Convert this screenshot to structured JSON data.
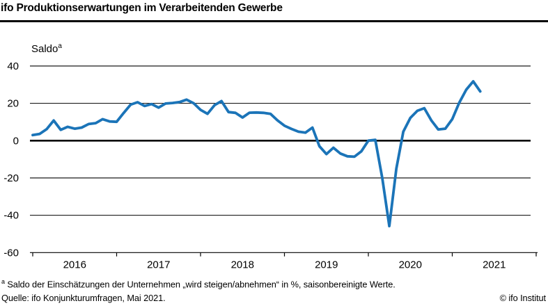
{
  "header": {
    "title": "ifo Produktionserwartungen im Verarbeitenden Gewerbe"
  },
  "y_axis": {
    "unit_label": "Saldo",
    "unit_label_marker": "a"
  },
  "chart_data": {
    "type": "line",
    "title": "ifo Produktionserwartungen im Verarbeitenden Gewerbe",
    "ylabel": "Saldo",
    "ylim": [
      -60,
      40
    ],
    "yticks": [
      40,
      20,
      0,
      -20,
      -40,
      -60
    ],
    "x_year_labels": [
      "2016",
      "2017",
      "2018",
      "2019",
      "2020",
      "2021"
    ],
    "x_start": "2016-01",
    "x_end": "2021-05",
    "frequency": "monthly",
    "grid": "horizontal",
    "zero_line_bold": true,
    "series": [
      {
        "name": "Produktionserwartungen (Saldo, saisonbereinigt)",
        "color": "#1b74b8",
        "values": [
          3.0,
          3.6,
          6.2,
          10.8,
          5.8,
          7.4,
          6.4,
          7.0,
          8.9,
          9.4,
          11.5,
          10.3,
          10.1,
          14.8,
          19.3,
          20.6,
          18.6,
          19.6,
          17.7,
          19.9,
          20.2,
          20.7,
          22.0,
          20.1,
          16.5,
          14.4,
          19.0,
          21.2,
          15.3,
          14.9,
          12.4,
          15.0,
          15.1,
          14.9,
          14.4,
          10.9,
          8.0,
          6.3,
          4.8,
          4.3,
          7.0,
          -3.0,
          -7.2,
          -3.8,
          -6.9,
          -8.4,
          -8.6,
          -5.7,
          0.0,
          0.4,
          -20.3,
          -45.8,
          -15.0,
          4.8,
          12.2,
          16.0,
          17.4,
          10.9,
          6.0,
          6.4,
          11.5,
          20.3,
          27.3,
          31.8,
          26.4
        ]
      }
    ]
  },
  "footer": {
    "footnote_marker": "a",
    "footnote_text": " Saldo der Einschätzungen der Unternehmen „wird steigen/abnehmen“ in %, saisonbereinigte Werte.",
    "source": "Quelle: ifo Konjunkturumfragen, Mai 2021.",
    "copyright": "© ifo Institut"
  },
  "colors": {
    "line": "#1b74b8",
    "axis": "#000000",
    "background": "#ffffff"
  }
}
